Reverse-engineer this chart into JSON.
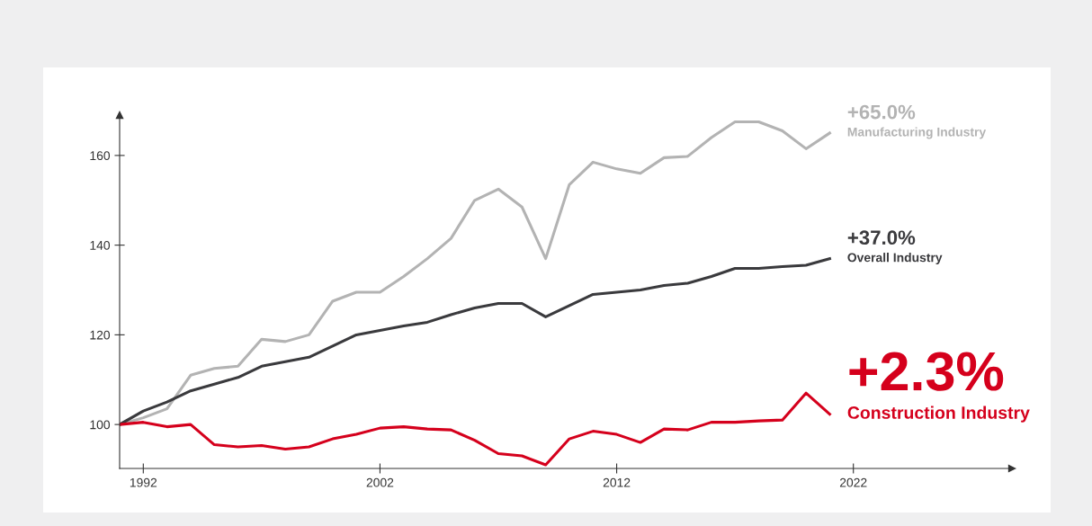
{
  "chart_data": {
    "type": "line",
    "x": [
      1991,
      1992,
      1993,
      1994,
      1995,
      1996,
      1997,
      1998,
      1999,
      2000,
      2001,
      2002,
      2003,
      2004,
      2005,
      2006,
      2007,
      2008,
      2009,
      2010,
      2011,
      2012,
      2013,
      2014,
      2015,
      2016,
      2017,
      2018,
      2019,
      2020,
      2021
    ],
    "series": [
      {
        "name": "Manufacturing Industry",
        "color": "#b3b3b3",
        "values": [
          100,
          101.5,
          103.5,
          111,
          112.5,
          113,
          119,
          118.5,
          120,
          127.5,
          129.5,
          129.5,
          133,
          137,
          141.5,
          150,
          152.5,
          148.5,
          137,
          153.5,
          158.5,
          157,
          156,
          159.5,
          159.8,
          164,
          167.5,
          167.5,
          165.5,
          161.5,
          165
        ]
      },
      {
        "name": "Overall Industry",
        "color": "#3a3a3d",
        "values": [
          100,
          103,
          105,
          107.5,
          109,
          110.5,
          113,
          114,
          115,
          117.5,
          120,
          121,
          122,
          122.8,
          124.5,
          126,
          127,
          127,
          124,
          126.5,
          129,
          129.5,
          130,
          131,
          131.5,
          133,
          134.8,
          134.8,
          135.2,
          135.5,
          137
        ]
      },
      {
        "name": "Construction Industry",
        "color": "#d5001c",
        "values": [
          100,
          100.5,
          99.5,
          100,
          95.5,
          95,
          95.3,
          94.5,
          95,
          96.8,
          97.8,
          99.2,
          99.5,
          99,
          98.8,
          96.5,
          93.5,
          93,
          91,
          96.8,
          98.5,
          97.8,
          96,
          99,
          98.8,
          100.5,
          100.5,
          100.8,
          101,
          107,
          102.3
        ]
      }
    ],
    "annotations": [
      "+65.0%",
      "+37.0%",
      "+2.3%"
    ],
    "xlim": [
      1991,
      2028.7
    ],
    "ylim": [
      90.2,
      169
    ],
    "xticks": [
      1992,
      2002,
      2012,
      2022
    ],
    "yticks": [
      100,
      120,
      140,
      160
    ],
    "grid": false,
    "legend": false,
    "marker": "none",
    "line_style": "solid"
  }
}
